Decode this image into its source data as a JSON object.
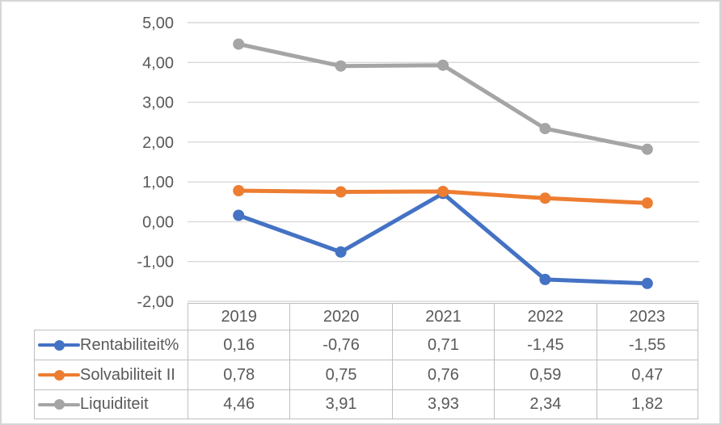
{
  "chart_data": {
    "type": "line",
    "title": "",
    "xlabel": "",
    "ylabel": "",
    "categories": [
      "2019",
      "2020",
      "2021",
      "2022",
      "2023"
    ],
    "series": [
      {
        "name": "Rentabiliteit%",
        "color": "#4472C4",
        "values": [
          0.16,
          -0.76,
          0.71,
          -1.45,
          -1.55
        ],
        "values_display": [
          "0,16",
          "-0,76",
          "0,71",
          "-1,45",
          "-1,55"
        ]
      },
      {
        "name": "Solvabiliteit II",
        "color": "#ED7D31",
        "values": [
          0.78,
          0.75,
          0.76,
          0.59,
          0.47
        ],
        "values_display": [
          "0,78",
          "0,75",
          "0,76",
          "0,59",
          "0,47"
        ]
      },
      {
        "name": "Liquiditeit",
        "color": "#A5A5A5",
        "values": [
          4.46,
          3.91,
          3.93,
          2.34,
          1.82
        ],
        "values_display": [
          "4,46",
          "3,91",
          "3,93",
          "2,34",
          "1,82"
        ]
      }
    ],
    "ylim": [
      -2,
      5
    ],
    "yticks": [
      5,
      4,
      3,
      2,
      1,
      0,
      -1,
      -2
    ],
    "ytick_labels": [
      "5,00",
      "4,00",
      "3,00",
      "2,00",
      "1,00",
      "0,00",
      "-1,00",
      "-2,00"
    ],
    "grid": true,
    "legend_position": "table-left"
  },
  "colors": {
    "text": "#595959",
    "gridline": "#D9D9D9",
    "table_border": "#BFBFBF",
    "frame_border": "#D6D6D6",
    "background": "#FFFFFF"
  }
}
